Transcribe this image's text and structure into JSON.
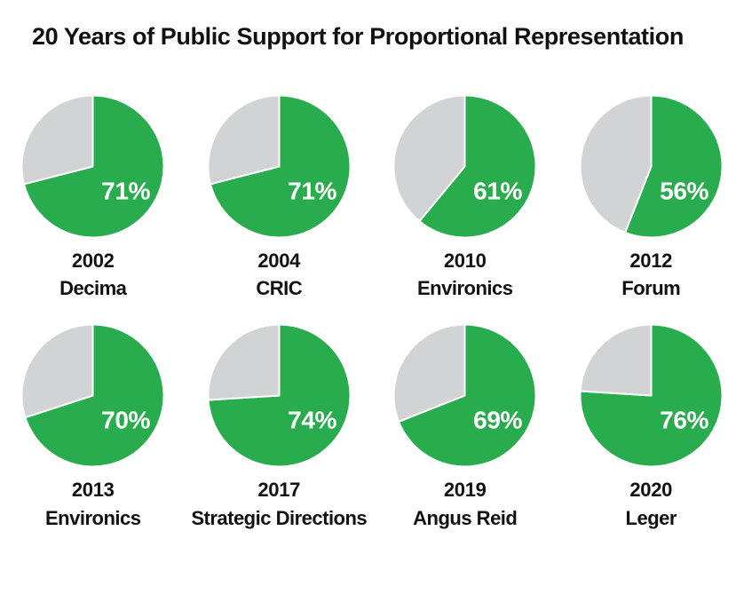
{
  "title": "20 Years of Public Support for Proportional Representation",
  "colors": {
    "support_green": "#28ac4d",
    "remainder_gray": "#d1d3d4",
    "percent_label": "#ffffff",
    "text": "#111111",
    "background": "#ffffff"
  },
  "chart_data": {
    "type": "pie",
    "title": "20 Years of Public Support for Proportional Representation",
    "layout": "4x2 grid of pie multiples, support slice starts at 12 o'clock and sweeps clockwise, percent label inside green slice, year and pollster labels centered below each pie",
    "legend": "none",
    "charts": [
      {
        "year": "2002",
        "pollster": "Decima",
        "support_pct": 71,
        "remainder_pct": 29,
        "label": "71%"
      },
      {
        "year": "2004",
        "pollster": "CRIC",
        "support_pct": 71,
        "remainder_pct": 29,
        "label": "71%"
      },
      {
        "year": "2010",
        "pollster": "Environics",
        "support_pct": 61,
        "remainder_pct": 39,
        "label": "61%"
      },
      {
        "year": "2012",
        "pollster": "Forum",
        "support_pct": 56,
        "remainder_pct": 44,
        "label": "56%"
      },
      {
        "year": "2013",
        "pollster": "Environics",
        "support_pct": 70,
        "remainder_pct": 30,
        "label": "70%"
      },
      {
        "year": "2017",
        "pollster": "Strategic Directions",
        "support_pct": 74,
        "remainder_pct": 26,
        "label": "74%"
      },
      {
        "year": "2019",
        "pollster": "Angus Reid",
        "support_pct": 69,
        "remainder_pct": 31,
        "label": "69%"
      },
      {
        "year": "2020",
        "pollster": "Leger",
        "support_pct": 76,
        "remainder_pct": 24,
        "label": "76%"
      }
    ]
  }
}
